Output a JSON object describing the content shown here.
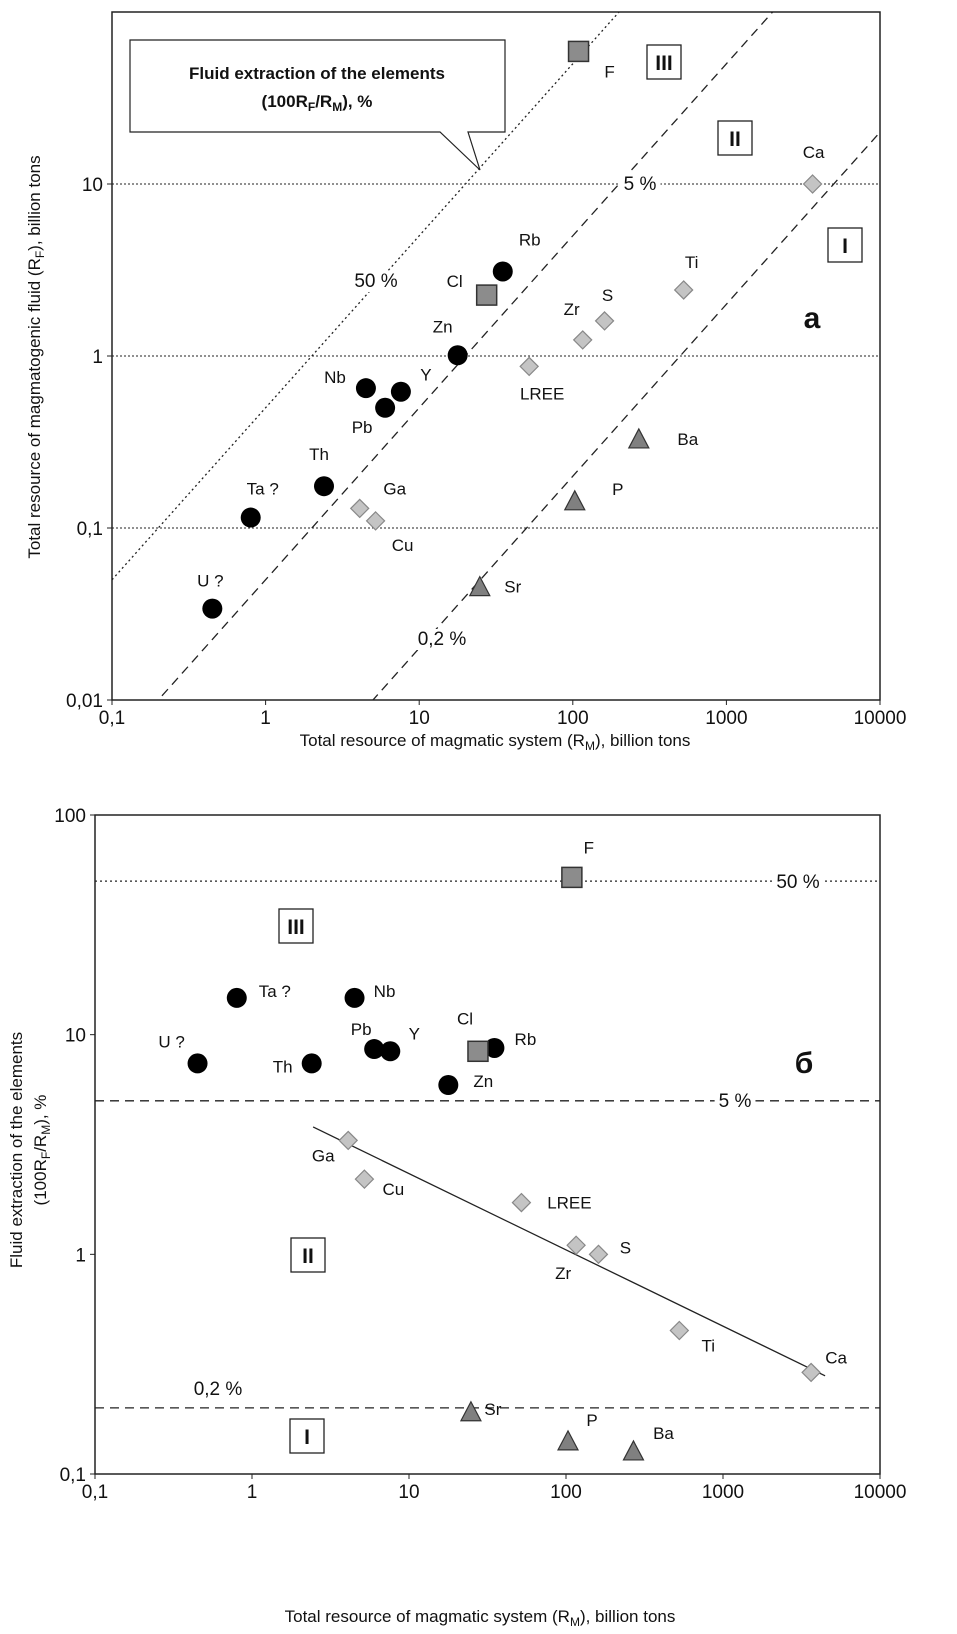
{
  "chart_data": [
    {
      "type": "scatter",
      "xscale": "log",
      "yscale": "log",
      "xlim": [
        0.1,
        10000
      ],
      "ylim": [
        0.01,
        100
      ],
      "xticks": [
        {
          "value": 0.1,
          "label": "0,1"
        },
        1,
        10,
        100,
        1000,
        10000
      ],
      "yticks": [
        {
          "value": 0.01,
          "label": "0,01"
        },
        {
          "value": 0.1,
          "label": "0,1"
        },
        1,
        10
      ],
      "grid": true,
      "xlabel": [
        "Total resource of magmatic system (R",
        "M",
        "), billion tons"
      ],
      "ylabel": [
        [
          "Total resource of magmatogenic fluid (R",
          "F",
          "), billion tons"
        ]
      ],
      "panel_label": "а",
      "zones": [
        "I",
        "II",
        "III"
      ],
      "callout": [
        [
          "Fluid extraction of the elements"
        ],
        [
          "(100R",
          "F",
          "/R",
          "M",
          "), %"
        ]
      ],
      "ratio_lines": [
        {
          "value": 50,
          "label": "50 %",
          "style": "dotted"
        },
        {
          "value": 5,
          "label": "5 %",
          "style": "dashed"
        },
        {
          "value": 0.2,
          "label": "0,2 %",
          "style": "dashed"
        }
      ],
      "series": [
        {
          "marker": "circle",
          "color": "#000000",
          "labels": [
            "U ?",
            "Ta ?",
            "Th",
            "Nb",
            "Pb",
            "Y",
            "Zn",
            "Rb"
          ],
          "x": [
            0.45,
            0.8,
            2.4,
            4.5,
            6,
            7.6,
            17.8,
            35
          ],
          "y": [
            0.034,
            0.115,
            0.175,
            0.65,
            0.5,
            0.62,
            1.01,
            3.1
          ]
        },
        {
          "marker": "square",
          "color": "#8c8c8c",
          "labels": [
            "Cl",
            "F"
          ],
          "x": [
            27.5,
            109
          ],
          "y": [
            2.26,
            59
          ]
        },
        {
          "marker": "diamond",
          "color": "#c4c4c4",
          "labels": [
            "Ga",
            "Cu",
            "LREE",
            "Zr",
            "S",
            "Ti",
            "Ca"
          ],
          "x": [
            4.1,
            5.2,
            52,
            116,
            161,
            527,
            3640
          ],
          "y": [
            0.13,
            0.11,
            0.87,
            1.24,
            1.6,
            2.42,
            10
          ]
        },
        {
          "marker": "triangle",
          "color": "#808080",
          "labels": [
            "Ba",
            "P",
            "Sr"
          ],
          "x": [
            269,
            103,
            24.8
          ],
          "y": [
            0.325,
            0.142,
            0.045
          ]
        }
      ]
    },
    {
      "type": "scatter",
      "xscale": "log",
      "yscale": "log",
      "xlim": [
        0.1,
        10000
      ],
      "ylim": [
        0.1,
        100
      ],
      "xticks": [
        {
          "value": 0.1,
          "label": "0,1"
        },
        1,
        10,
        100,
        1000,
        10000
      ],
      "yticks": [
        {
          "value": 0.1,
          "label": "0,1"
        },
        1,
        10,
        100
      ],
      "grid": false,
      "xlabel": [
        "Total resource of magmatic system (R",
        "M",
        "), billion tons"
      ],
      "ylabel": [
        [
          "Fluid extraction of the elements"
        ],
        [
          "(100R",
          "F",
          "/R",
          "M",
          "), %"
        ]
      ],
      "panel_label": "б",
      "zones": [
        "I",
        "II",
        "III"
      ],
      "hlines": [
        {
          "value": 50,
          "label": "50 %",
          "style": "dotted"
        },
        {
          "value": 5,
          "label": "5 %",
          "style": "dashed"
        },
        {
          "value": 0.2,
          "label": "0,2 %",
          "style": "dashed"
        }
      ],
      "trendline": {
        "x": [
          2.45,
          4470
        ],
        "y": [
          3.8,
          0.28
        ]
      },
      "series": [
        {
          "marker": "circle",
          "color": "#000000",
          "labels": [
            "U ?",
            "Ta ?",
            "Th",
            "Nb",
            "Pb",
            "Y",
            "Zn",
            "Rb"
          ],
          "x": [
            0.45,
            0.8,
            2.4,
            4.5,
            6,
            7.6,
            17.8,
            35
          ],
          "y": [
            7.4,
            14.7,
            7.4,
            14.7,
            8.6,
            8.4,
            5.9,
            8.7
          ]
        },
        {
          "marker": "square",
          "color": "#8c8c8c",
          "labels": [
            "Cl",
            "F"
          ],
          "x": [
            27.5,
            109
          ],
          "y": [
            8.4,
            52
          ]
        },
        {
          "marker": "diamond",
          "color": "#c4c4c4",
          "labels": [
            "Ga",
            "Cu",
            "LREE",
            "Zr",
            "S",
            "Ti",
            "Ca"
          ],
          "x": [
            4.1,
            5.2,
            52,
            116,
            161,
            527,
            3640
          ],
          "y": [
            3.3,
            2.2,
            1.72,
            1.1,
            1.0,
            0.45,
            0.29
          ]
        },
        {
          "marker": "triangle",
          "color": "#808080",
          "labels": [
            "Sr",
            "P",
            "Ba"
          ],
          "x": [
            24.8,
            103,
            269
          ],
          "y": [
            0.19,
            0.14,
            0.126
          ]
        }
      ]
    }
  ]
}
